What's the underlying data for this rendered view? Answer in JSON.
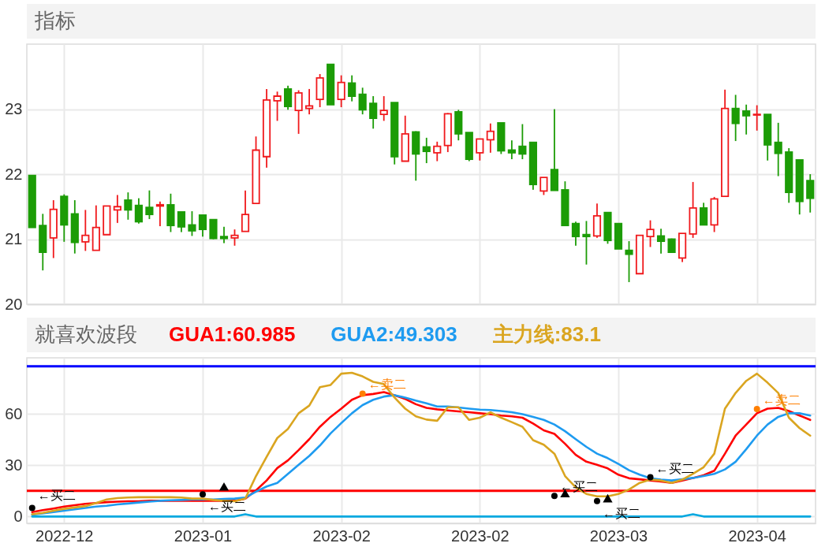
{
  "chart_data": [
    {
      "type": "candlestick",
      "title": "指标",
      "categories": [
        null,
        null,
        null,
        "2022-12",
        null,
        null,
        null,
        null,
        null,
        null,
        null,
        null,
        null,
        null,
        null,
        null,
        "2023-01",
        null,
        null,
        null,
        null,
        null,
        null,
        null,
        null,
        null,
        null,
        null,
        null,
        "2023-02",
        null,
        null,
        null,
        null,
        null,
        null,
        null,
        null,
        null,
        null,
        null,
        null,
        "2023-02",
        null,
        null,
        null,
        null,
        null,
        null,
        null,
        null,
        null,
        null,
        null,
        null,
        "2023-03",
        null,
        null,
        null,
        null,
        null,
        null,
        null,
        null,
        null,
        null,
        null,
        null,
        "2023-04",
        null,
        null,
        null,
        null,
        null
      ],
      "ohlc": [
        [
          21.98,
          21.98,
          21.18,
          21.18
        ],
        [
          21.21,
          21.39,
          20.52,
          20.8
        ],
        [
          21.02,
          21.6,
          20.71,
          21.46
        ],
        [
          21.66,
          21.69,
          20.96,
          21.22
        ],
        [
          21.39,
          21.6,
          20.78,
          20.95
        ],
        [
          20.96,
          21.45,
          20.82,
          21.06
        ],
        [
          20.83,
          21.52,
          20.83,
          21.18
        ],
        [
          21.07,
          21.51,
          21.07,
          21.51
        ],
        [
          21.45,
          21.68,
          21.25,
          21.5
        ],
        [
          21.6,
          21.72,
          21.3,
          21.45
        ],
        [
          21.52,
          21.63,
          21.24,
          21.27
        ],
        [
          21.49,
          21.75,
          21.31,
          21.38
        ],
        [
          21.51,
          21.58,
          21.2,
          21.53
        ],
        [
          21.53,
          21.7,
          21.11,
          21.21
        ],
        [
          21.42,
          21.42,
          21.11,
          21.19
        ],
        [
          21.22,
          21.43,
          21.05,
          21.13
        ],
        [
          21.37,
          21.37,
          21.04,
          21.15
        ],
        [
          21.3,
          21.3,
          21.0,
          21.01
        ],
        [
          21.04,
          21.19,
          20.94,
          21.01
        ],
        [
          21.02,
          21.15,
          20.9,
          21.06
        ],
        [
          21.12,
          21.75,
          21.12,
          21.38
        ],
        [
          21.55,
          22.58,
          21.55,
          22.37
        ],
        [
          22.27,
          23.31,
          22.1,
          23.14
        ],
        [
          23.13,
          23.27,
          22.82,
          23.2
        ],
        [
          23.31,
          23.36,
          22.99,
          23.04
        ],
        [
          22.98,
          23.29,
          22.62,
          23.25
        ],
        [
          23.01,
          23.31,
          22.92,
          23.05
        ],
        [
          23.15,
          23.54,
          23.03,
          23.48
        ],
        [
          23.69,
          23.69,
          23.07,
          23.07
        ],
        [
          23.15,
          23.52,
          23.03,
          23.41
        ],
        [
          23.4,
          23.52,
          23.12,
          23.2
        ],
        [
          23.23,
          23.33,
          22.92,
          22.99
        ],
        [
          23.09,
          23.2,
          22.7,
          22.86
        ],
        [
          22.92,
          23.2,
          22.82,
          22.98
        ],
        [
          23.1,
          23.1,
          22.15,
          22.27
        ],
        [
          22.2,
          22.9,
          22.2,
          22.62
        ],
        [
          22.65,
          22.66,
          21.9,
          22.31
        ],
        [
          22.42,
          22.56,
          22.17,
          22.35
        ],
        [
          22.33,
          22.5,
          22.2,
          22.43
        ],
        [
          22.44,
          22.94,
          22.34,
          22.93
        ],
        [
          22.96,
          22.99,
          22.52,
          22.62
        ],
        [
          22.64,
          22.64,
          22.2,
          22.23
        ],
        [
          22.33,
          22.54,
          22.21,
          22.54
        ],
        [
          22.53,
          22.78,
          22.33,
          22.66
        ],
        [
          22.79,
          22.79,
          22.31,
          22.36
        ],
        [
          22.37,
          22.52,
          22.23,
          22.33
        ],
        [
          22.43,
          22.77,
          22.23,
          22.31
        ],
        [
          22.49,
          22.49,
          21.76,
          21.84
        ],
        [
          21.74,
          21.95,
          21.68,
          21.95
        ],
        [
          22.07,
          23.0,
          21.75,
          21.75
        ],
        [
          21.76,
          21.89,
          21.21,
          21.21
        ],
        [
          21.24,
          21.27,
          20.9,
          21.04
        ],
        [
          21.07,
          21.28,
          20.61,
          21.04
        ],
        [
          21.05,
          21.55,
          21.02,
          21.36
        ],
        [
          21.41,
          21.41,
          20.93,
          20.98
        ],
        [
          21.24,
          21.24,
          20.85,
          20.85
        ],
        [
          20.83,
          20.97,
          20.34,
          20.77
        ],
        [
          20.47,
          21.06,
          20.47,
          21.06
        ],
        [
          21.04,
          21.29,
          20.88,
          21.15
        ],
        [
          21.05,
          21.16,
          20.78,
          20.97
        ],
        [
          21.0,
          21.01,
          20.8,
          20.8
        ],
        [
          20.71,
          21.09,
          20.65,
          21.09
        ],
        [
          21.08,
          21.88,
          21.02,
          21.48
        ],
        [
          21.48,
          21.56,
          21.22,
          21.22
        ],
        [
          21.22,
          21.65,
          21.11,
          21.62
        ],
        [
          21.66,
          23.3,
          21.66,
          23.01
        ],
        [
          23.01,
          23.22,
          22.51,
          22.78
        ],
        [
          22.97,
          23.07,
          22.61,
          22.9
        ],
        [
          22.91,
          23.06,
          22.67,
          22.92
        ],
        [
          22.92,
          22.92,
          22.21,
          22.45
        ],
        [
          22.49,
          22.79,
          21.97,
          22.32
        ],
        [
          22.34,
          22.4,
          21.56,
          21.72
        ],
        [
          22.22,
          22.22,
          21.38,
          21.58
        ],
        [
          21.9,
          22.0,
          21.41,
          21.63
        ]
      ],
      "colors": [
        "#1c9c06",
        "#1c9c06",
        "#f0191c",
        "#1c9c06",
        "#1c9c06",
        "#f0191c",
        "#f0191c",
        "#f0191c",
        "#f0191c",
        "#1c9c06",
        "#1c9c06",
        "#1c9c06",
        "#f0191c",
        "#1c9c06",
        "#1c9c06",
        "#1c9c06",
        "#1c9c06",
        "#1c9c06",
        "#1c9c06",
        "#f0191c",
        "#f0191c",
        "#f0191c",
        "#f0191c",
        "#f0191c",
        "#1c9c06",
        "#f0191c",
        "#f0191c",
        "#f0191c",
        "#1c9c06",
        "#f0191c",
        "#1c9c06",
        "#1c9c06",
        "#1c9c06",
        "#f0191c",
        "#1c9c06",
        "#f0191c",
        "#1c9c06",
        "#1c9c06",
        "#f0191c",
        "#f0191c",
        "#1c9c06",
        "#1c9c06",
        "#f0191c",
        "#f0191c",
        "#1c9c06",
        "#1c9c06",
        "#1c9c06",
        "#1c9c06",
        "#f0191c",
        "#1c9c06",
        "#1c9c06",
        "#1c9c06",
        "#1c9c06",
        "#f0191c",
        "#1c9c06",
        "#1c9c06",
        "#1c9c06",
        "#f0191c",
        "#f0191c",
        "#1c9c06",
        "#1c9c06",
        "#f0191c",
        "#f0191c",
        "#1c9c06",
        "#f0191c",
        "#f0191c",
        "#1c9c06",
        "#1c9c06",
        "#f0191c",
        "#1c9c06",
        "#1c9c06",
        "#1c9c06",
        "#1c9c06",
        "#1c9c06"
      ],
      "ylim": [
        20,
        24
      ],
      "yticks": [
        20,
        21,
        22,
        23
      ],
      "grid": true,
      "tick_labels": "y"
    },
    {
      "type": "line",
      "title": "就喜欢波段",
      "categories": [
        null,
        null,
        null,
        "2022-12",
        null,
        null,
        null,
        null,
        null,
        null,
        null,
        null,
        null,
        null,
        null,
        null,
        "2023-01",
        null,
        null,
        null,
        null,
        null,
        null,
        null,
        null,
        null,
        null,
        null,
        null,
        "2023-02",
        null,
        null,
        null,
        null,
        null,
        null,
        null,
        null,
        null,
        null,
        null,
        null,
        "2023-02",
        null,
        null,
        null,
        null,
        null,
        null,
        null,
        null,
        null,
        null,
        null,
        null,
        "2023-03",
        null,
        null,
        null,
        null,
        null,
        null,
        null,
        null,
        null,
        null,
        null,
        null,
        "2023-04",
        null,
        null,
        null,
        null,
        null
      ],
      "series": [
        {
          "color": "#00a8e0",
          "values": [
            0,
            0,
            0,
            0,
            0,
            0,
            0,
            0,
            0,
            0,
            0,
            0,
            0,
            0,
            0,
            0,
            0,
            0,
            0,
            0,
            1.3,
            0,
            0,
            0,
            0,
            0,
            0,
            0,
            0,
            0,
            0,
            0,
            0,
            0,
            0,
            0,
            0,
            0,
            0,
            0,
            0,
            0,
            0,
            0,
            0,
            0,
            0,
            0,
            0,
            0,
            0,
            0,
            0,
            0,
            0,
            0,
            0,
            0,
            0,
            0,
            0,
            0,
            1.3,
            0,
            0,
            0,
            0,
            0,
            0,
            0,
            0,
            0,
            0,
            0
          ]
        },
        {
          "name": "GUA1:60.985",
          "color": "#ff0000",
          "values": [
            2.6,
            3.7,
            4.7,
            5.8,
            6.6,
            7.4,
            7.9,
            8.4,
            8.7,
            8.9,
            8.9,
            9.2,
            9.2,
            9.2,
            9.2,
            9.2,
            9.2,
            9.2,
            9.2,
            9.2,
            10.5,
            15.3,
            21.1,
            28.4,
            32.9,
            38.9,
            45.3,
            52.6,
            58.4,
            63.2,
            68.4,
            71.1,
            71.8,
            72.9,
            71.1,
            68.9,
            65.8,
            63.7,
            62.8,
            62.2,
            61.6,
            61.1,
            60.5,
            60,
            59.2,
            58.7,
            57.9,
            54.5,
            50.5,
            48.4,
            42.6,
            36.1,
            32.1,
            30.3,
            28.2,
            24.5,
            22.4,
            21.8,
            21.1,
            20.5,
            19.7,
            21.1,
            22.6,
            24.2,
            26.8,
            36.8,
            47.4,
            53.9,
            60.5,
            63.2,
            63.7,
            61.8,
            59.2,
            56.6
          ]
        },
        {
          "name": "GUA2:49.303",
          "color": "#1e9bf0",
          "values": [
            1.1,
            1.8,
            2.6,
            3.4,
            4.2,
            5,
            5.8,
            6.3,
            7.1,
            7.6,
            8.2,
            8.7,
            9.2,
            9.5,
            9.7,
            10,
            10,
            10,
            10.3,
            10.5,
            11.1,
            14.5,
            17.6,
            19.7,
            25,
            30.3,
            35.5,
            41.6,
            48.7,
            54.7,
            60.5,
            65.3,
            68.4,
            70.3,
            71.1,
            69.7,
            67.9,
            66.3,
            64.5,
            64.5,
            63.9,
            63.2,
            62.6,
            62.4,
            61.8,
            61.1,
            60,
            58.4,
            56.6,
            53.9,
            50,
            45.3,
            40.8,
            36.8,
            34.2,
            30.8,
            27.1,
            24.5,
            22.4,
            21.6,
            21.1,
            21.8,
            22.6,
            23.7,
            25,
            27.6,
            32.1,
            39.5,
            47.4,
            53.9,
            58.4,
            60.5,
            60.5,
            59.2
          ]
        },
        {
          "name": "主力线:83.1",
          "color": "#daa520",
          "values": [
            1.3,
            2.1,
            3.4,
            4.5,
            5.3,
            6.1,
            7.9,
            10,
            10.8,
            11.1,
            11.3,
            11.3,
            11.3,
            11.3,
            11.1,
            10.5,
            10.5,
            9.7,
            9.2,
            8.9,
            10.5,
            23.7,
            35,
            46,
            51.3,
            60.5,
            65,
            75.8,
            77.1,
            83.7,
            84.2,
            82.1,
            78.9,
            77.6,
            69.7,
            63.2,
            58.7,
            56.8,
            56.1,
            64,
            64,
            56.6,
            57.9,
            61,
            57.9,
            55.3,
            52.6,
            44.7,
            42.1,
            36.8,
            23.7,
            17.1,
            13.2,
            11.8,
            11.8,
            13.2,
            15.8,
            19.7,
            21.6,
            21.1,
            19.7,
            21.6,
            25,
            28.9,
            36.8,
            63.2,
            72.4,
            79.5,
            83.7,
            78.4,
            72.4,
            57.9,
            51.8,
            47.4
          ]
        },
        {
          "type": "scatter",
          "marker": "triangle",
          "color": "#000000",
          "values": [
            null,
            null,
            null,
            null,
            null,
            null,
            null,
            null,
            null,
            null,
            null,
            null,
            null,
            null,
            null,
            null,
            null,
            null,
            17.6,
            null,
            null,
            null,
            null,
            null,
            null,
            null,
            null,
            null,
            null,
            null,
            null,
            null,
            null,
            null,
            null,
            null,
            null,
            null,
            null,
            null,
            null,
            null,
            null,
            null,
            null,
            null,
            null,
            null,
            null,
            null,
            13.7,
            null,
            null,
            null,
            10.7,
            null,
            null,
            null,
            null,
            null,
            null,
            null,
            null,
            null,
            null,
            null,
            null,
            null,
            null,
            null,
            null,
            null,
            null,
            null
          ]
        },
        {
          "type": "scatter",
          "marker": "circle",
          "color": "#000000",
          "values": [
            5,
            null,
            null,
            null,
            null,
            null,
            null,
            null,
            null,
            null,
            null,
            null,
            null,
            null,
            null,
            null,
            13,
            null,
            null,
            null,
            null,
            null,
            null,
            null,
            null,
            null,
            null,
            null,
            null,
            null,
            null,
            null,
            null,
            null,
            null,
            null,
            null,
            null,
            null,
            null,
            null,
            null,
            null,
            null,
            null,
            null,
            null,
            null,
            null,
            12,
            null,
            null,
            null,
            9,
            null,
            null,
            null,
            null,
            23,
            null,
            null,
            null,
            null,
            null,
            null,
            null,
            null,
            null,
            null,
            null,
            null,
            null,
            null,
            null
          ],
          "value_labels": [
            "←买二",
            null,
            null,
            null,
            null,
            null,
            null,
            null,
            null,
            null,
            null,
            null,
            null,
            null,
            null,
            null,
            "←买二",
            null,
            null,
            null,
            null,
            null,
            null,
            null,
            null,
            null,
            null,
            null,
            null,
            null,
            null,
            null,
            null,
            null,
            null,
            null,
            null,
            null,
            null,
            null,
            null,
            null,
            null,
            null,
            null,
            null,
            null,
            null,
            null,
            "←买二",
            null,
            null,
            null,
            "←买二",
            null,
            null,
            null,
            null,
            "←买二",
            null,
            null,
            null,
            null,
            null,
            null,
            null,
            null,
            null,
            null,
            null,
            null,
            null,
            null,
            null
          ]
        },
        {
          "type": "scatter",
          "marker": "circle",
          "color": "#ff7f00",
          "values": [
            null,
            null,
            null,
            null,
            null,
            null,
            null,
            null,
            null,
            null,
            null,
            null,
            null,
            null,
            null,
            null,
            null,
            null,
            null,
            null,
            null,
            null,
            null,
            null,
            null,
            null,
            null,
            null,
            null,
            null,
            null,
            72,
            null,
            null,
            null,
            null,
            null,
            null,
            null,
            null,
            null,
            null,
            null,
            null,
            null,
            null,
            null,
            null,
            null,
            null,
            null,
            null,
            null,
            null,
            null,
            null,
            null,
            null,
            null,
            null,
            null,
            null,
            null,
            null,
            null,
            null,
            null,
            null,
            63,
            null,
            null,
            null,
            null,
            null
          ],
          "value_labels": [
            null,
            null,
            null,
            null,
            null,
            null,
            null,
            null,
            null,
            null,
            null,
            null,
            null,
            null,
            null,
            null,
            null,
            null,
            null,
            null,
            null,
            null,
            null,
            null,
            null,
            null,
            null,
            null,
            null,
            null,
            null,
            "←卖二",
            null,
            null,
            null,
            null,
            null,
            null,
            null,
            null,
            null,
            null,
            null,
            null,
            null,
            null,
            null,
            null,
            null,
            null,
            null,
            null,
            null,
            null,
            null,
            null,
            null,
            null,
            null,
            null,
            null,
            null,
            null,
            null,
            null,
            null,
            null,
            null,
            "←卖二",
            null,
            null,
            null,
            null,
            null
          ]
        }
      ],
      "ref_lines": [
        {
          "axis": "y",
          "value": 88,
          "color": "#0000ff"
        },
        {
          "axis": "y",
          "value": 15,
          "color": "#ff0000"
        }
      ],
      "ylim": [
        -4,
        93
      ],
      "yticks": [
        0,
        30,
        60
      ],
      "grid": true,
      "legend": "top left"
    }
  ]
}
